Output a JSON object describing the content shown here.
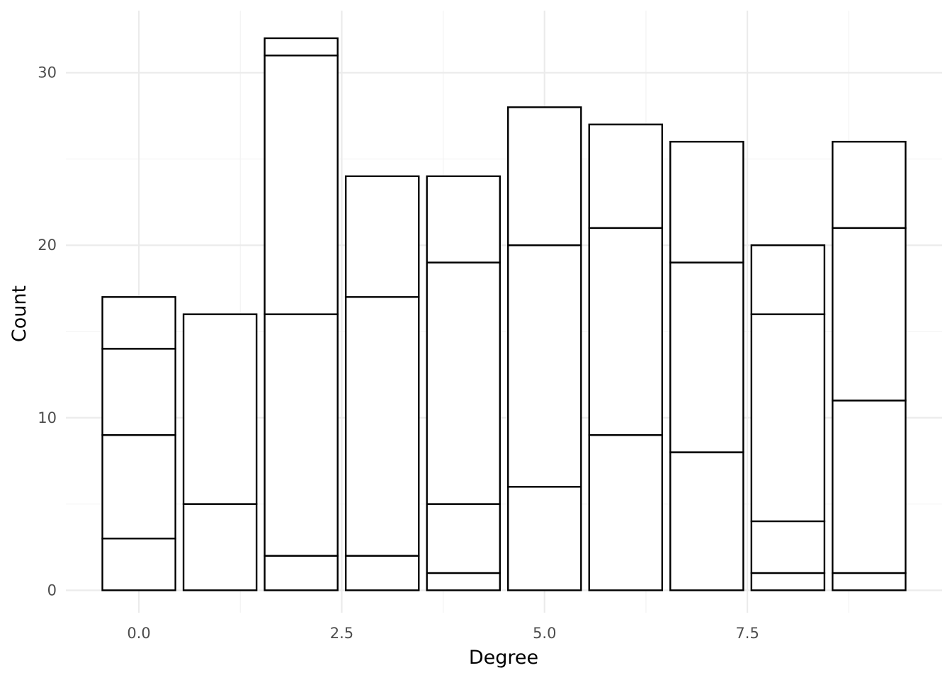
{
  "chart_data": {
    "type": "bar",
    "stacked": true,
    "title": "",
    "xlabel": "Degree",
    "ylabel": "Count",
    "xlim": [
      -0.9,
      9.9
    ],
    "ylim": [
      -1.3,
      33.6
    ],
    "x_ticks": [
      0.0,
      2.5,
      5.0,
      7.5
    ],
    "x_tick_labels": [
      "0.0",
      "2.5",
      "5.0",
      "7.5"
    ],
    "y_ticks": [
      0,
      10,
      20,
      30
    ],
    "y_tick_labels": [
      "0",
      "10",
      "20",
      "30"
    ],
    "grid": true,
    "legend": "none",
    "colors": {
      "fill": "#ffffff",
      "outline": "#000000",
      "grid": "#ebebeb",
      "tick_text": "#4d4d4d"
    },
    "bars": [
      {
        "x": 0,
        "boundaries": [
          0,
          3,
          9,
          14,
          17
        ]
      },
      {
        "x": 1,
        "boundaries": [
          0,
          5,
          16
        ]
      },
      {
        "x": 2,
        "boundaries": [
          0,
          2,
          16,
          31,
          32
        ]
      },
      {
        "x": 3,
        "boundaries": [
          0,
          2,
          17,
          24
        ]
      },
      {
        "x": 4,
        "boundaries": [
          0,
          1,
          5,
          19,
          24
        ]
      },
      {
        "x": 5,
        "boundaries": [
          0,
          6,
          20,
          28
        ]
      },
      {
        "x": 6,
        "boundaries": [
          0,
          9,
          21,
          27
        ]
      },
      {
        "x": 7,
        "boundaries": [
          0,
          8,
          19,
          26
        ]
      },
      {
        "x": 8,
        "boundaries": [
          0,
          1,
          4,
          16,
          20
        ]
      },
      {
        "x": 9,
        "boundaries": [
          0,
          1,
          11,
          21,
          26
        ]
      }
    ]
  }
}
